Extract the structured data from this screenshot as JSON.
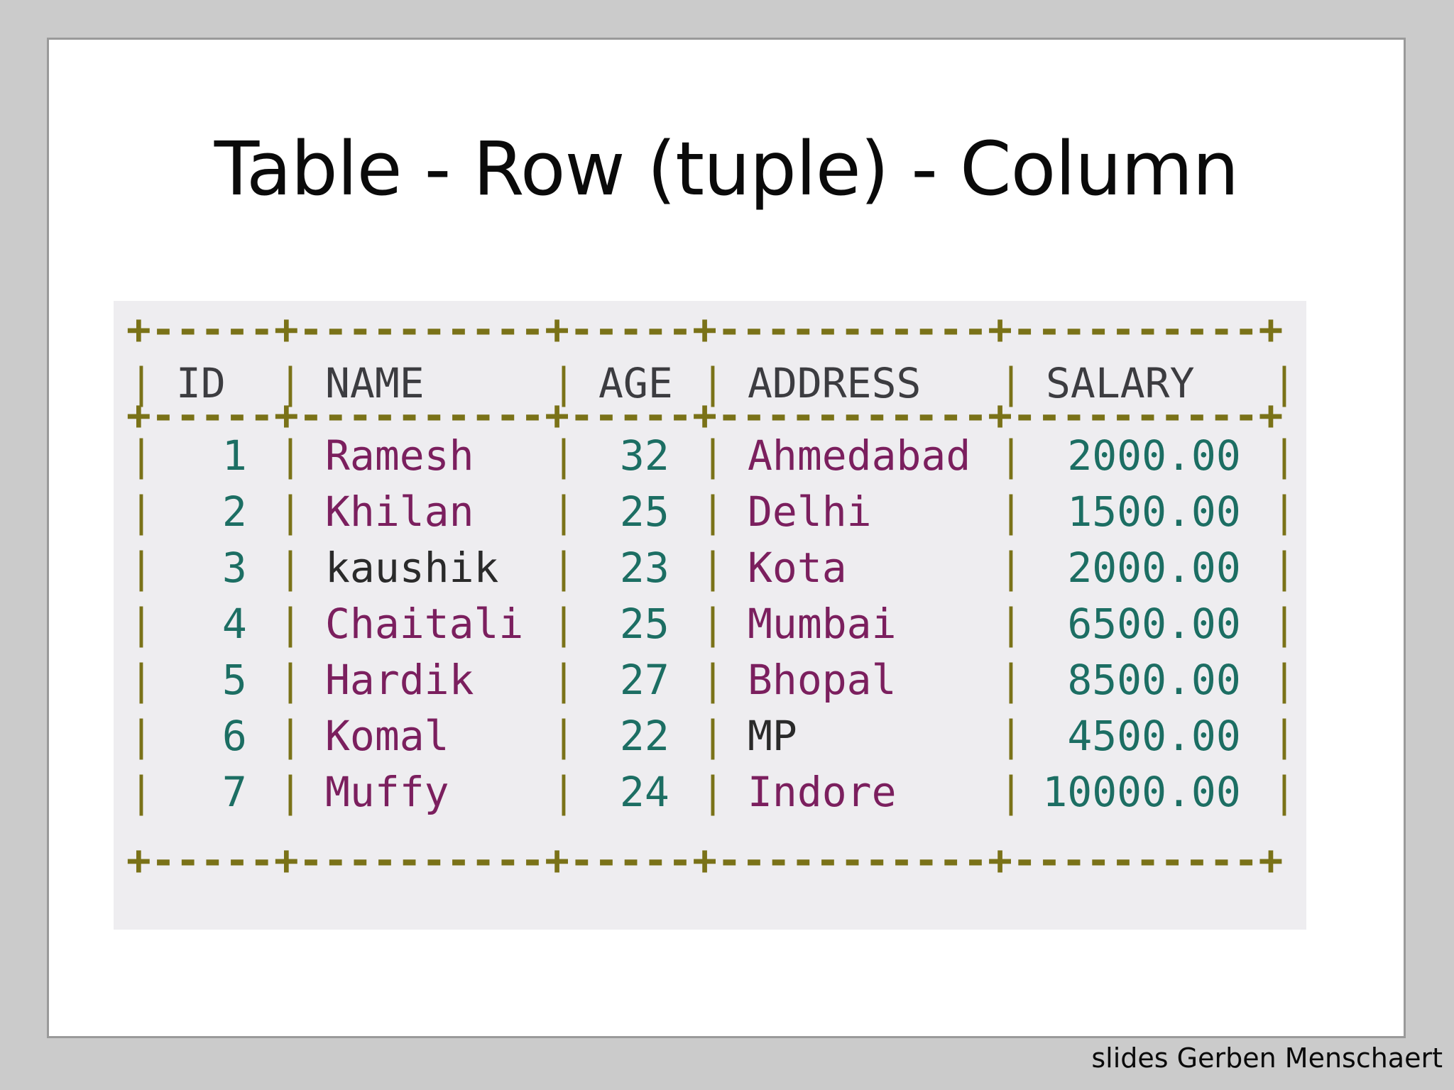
{
  "slide": {
    "title": "Table - Row (tuple) - Column",
    "footer": "slides Gerben Menschaert"
  },
  "table": {
    "border_line": "+-----+----------+-----+-----------+----------+",
    "columns": [
      "ID",
      "NAME",
      "AGE",
      "ADDRESS",
      "SALARY"
    ],
    "rows": [
      [
        "1",
        "Ramesh",
        "32",
        "Ahmedabad",
        "2000.00"
      ],
      [
        "2",
        "Khilan",
        "25",
        "Delhi",
        "1500.00"
      ],
      [
        "3",
        "kaushik",
        "23",
        "Kota",
        "2000.00"
      ],
      [
        "4",
        "Chaitali",
        "25",
        "Mumbai",
        "6500.00"
      ],
      [
        "5",
        "Hardik",
        "27",
        "Bhopal",
        "8500.00"
      ],
      [
        "6",
        "Komal",
        "22",
        "MP",
        "4500.00"
      ],
      [
        "7",
        "Muffy",
        "24",
        "Indore",
        "10000.00"
      ]
    ]
  },
  "colors": {
    "page_background": "#cbcbcb",
    "slide_background": "#ffffff",
    "table_background": "#eeedf0",
    "border_chars": "#7a7218",
    "header_text": "#3c3c40",
    "numeric_text": "#1c6e63",
    "string_text": "#7b1f5e",
    "plain_text": "#2a2a2a"
  }
}
